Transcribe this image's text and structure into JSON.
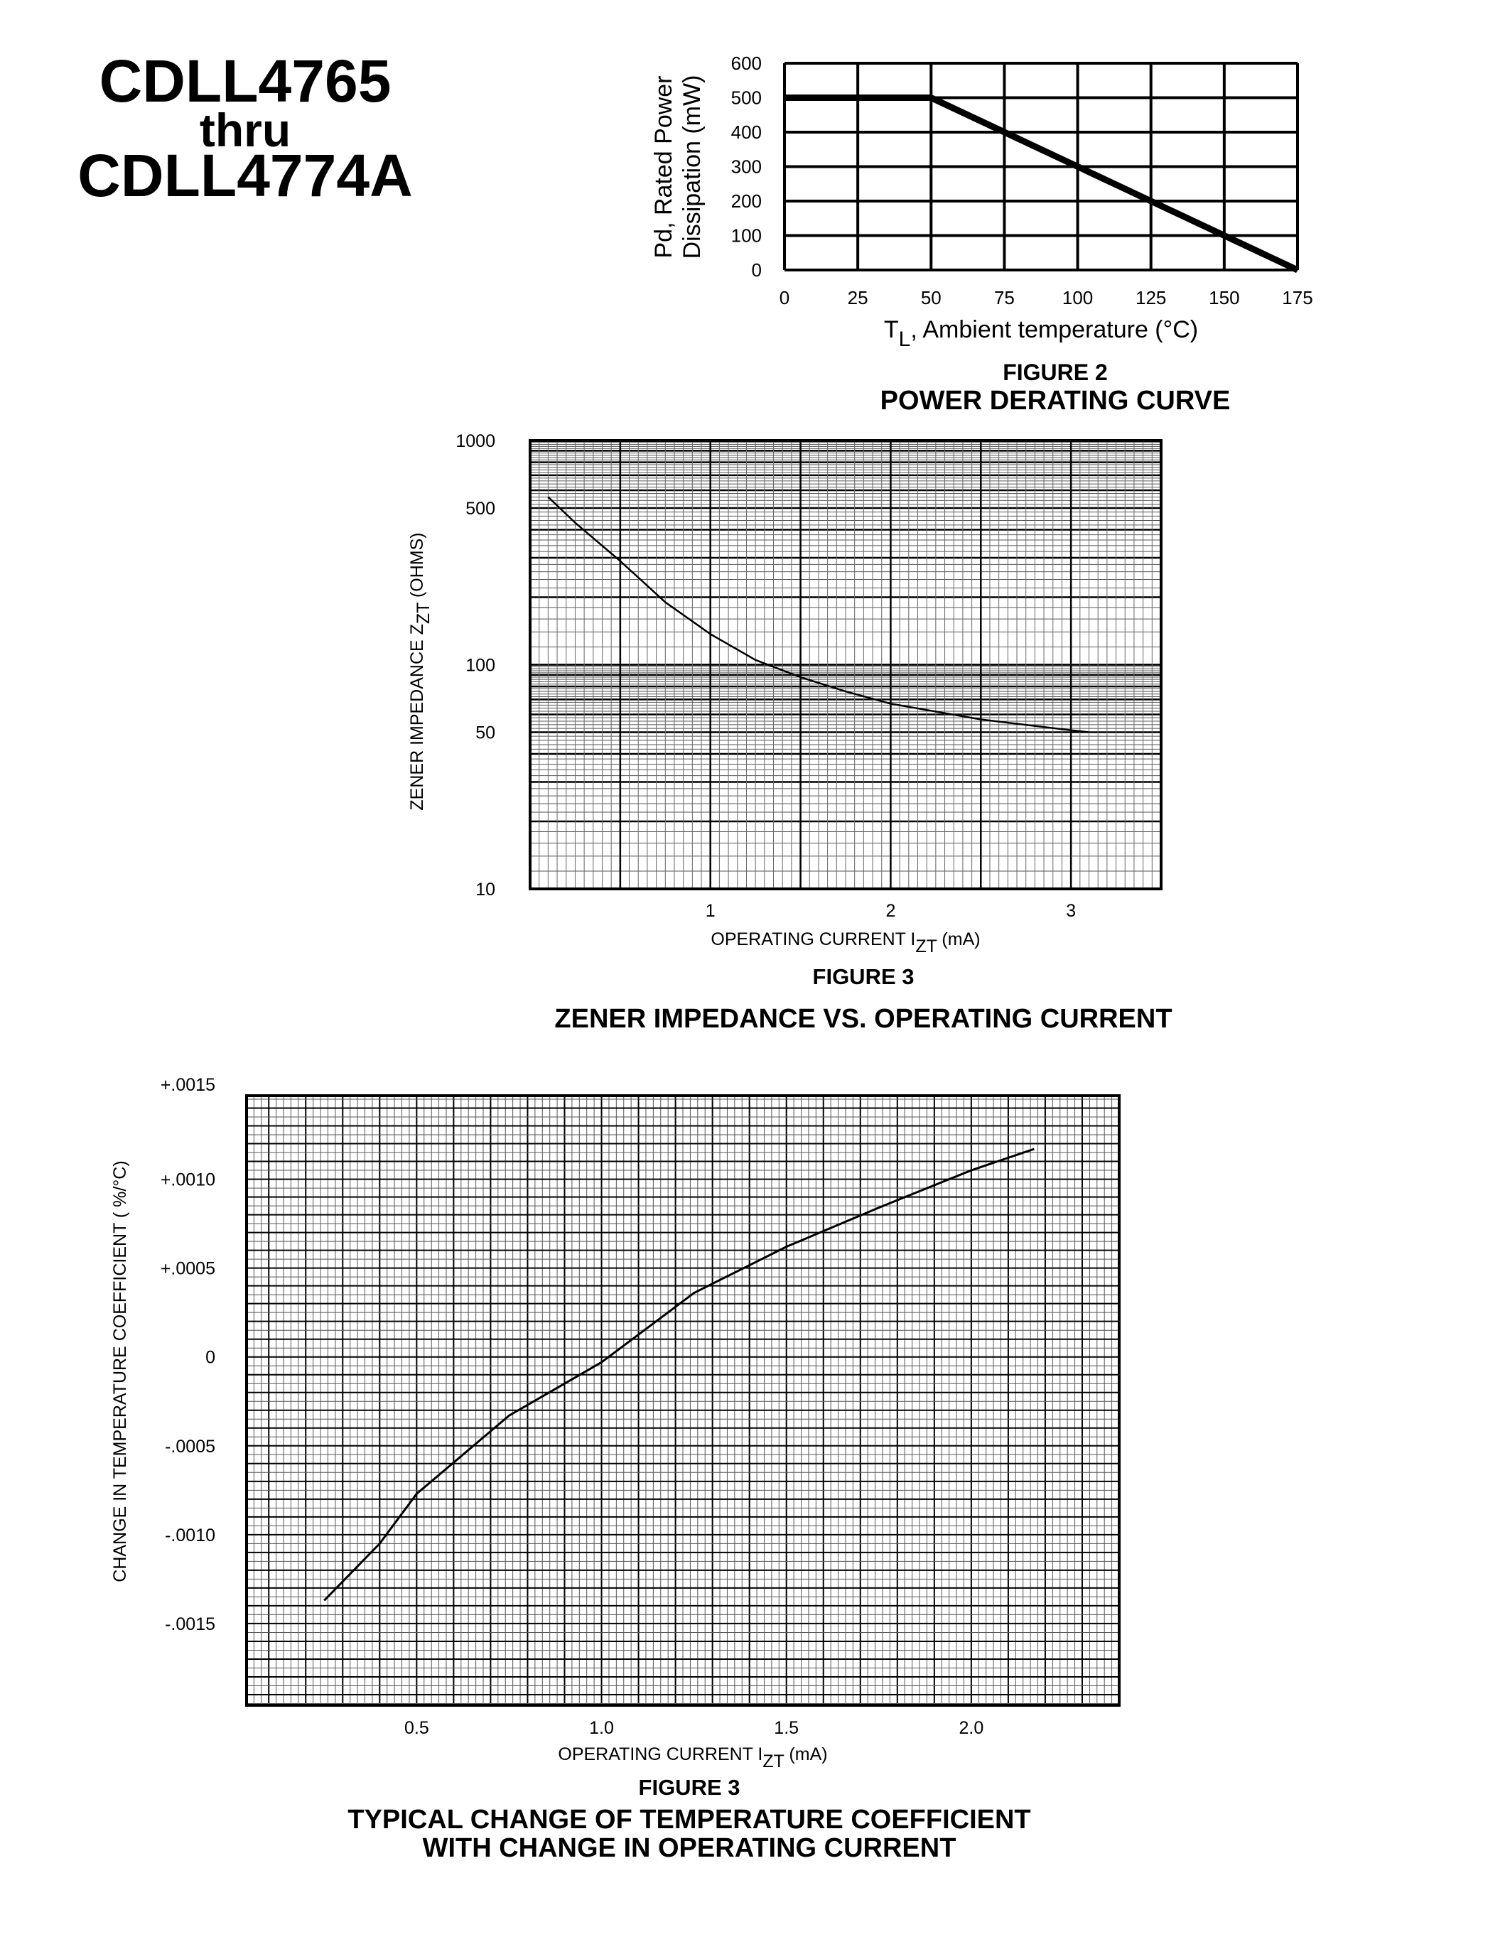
{
  "header": {
    "part_start": "CDLL4765",
    "thru": "thru",
    "part_end": "CDLL4774A"
  },
  "chart_data": [
    {
      "type": "line",
      "figure_label": "FIGURE 2",
      "title": "POWER DERATING CURVE",
      "ylabel_line1": "Pd, Rated Power",
      "ylabel_line2": "Dissipation (mW)",
      "xlabel_main": "T",
      "xlabel_sub": "L",
      "xlabel_rest": ", Ambient temperature (°C)",
      "xlim": [
        0,
        175
      ],
      "ylim": [
        0,
        600
      ],
      "xticks": [
        0,
        25,
        50,
        75,
        100,
        125,
        150,
        175
      ],
      "yticks": [
        0,
        100,
        200,
        300,
        400,
        500,
        600
      ],
      "grid": true,
      "series": [
        {
          "x": [
            0,
            50,
            175
          ],
          "y": [
            500,
            500,
            0
          ]
        }
      ]
    },
    {
      "type": "line",
      "figure_label": "FIGURE 3",
      "title": "ZENER IMPEDANCE VS. OPERATING CURRENT",
      "ylabel_main": "ZENER IMPEDANCE Z",
      "ylabel_sub": "ZT",
      "ylabel_rest": " (OHMS)",
      "xlabel_main": "OPERATING CURRENT I",
      "xlabel_sub": "ZT",
      "xlabel_rest": " (mA)",
      "xlim": [
        0,
        3.5
      ],
      "ylim": [
        10,
        1000
      ],
      "yscale": "log",
      "xticks": [
        "1",
        "2",
        "3"
      ],
      "yticks": [
        "10",
        "50",
        "100",
        "500",
        "1000"
      ],
      "grid": true,
      "series": [
        {
          "x": [
            0.1,
            0.25,
            0.5,
            0.75,
            1.0,
            1.25,
            1.5,
            1.75,
            2.0,
            2.5,
            3.0,
            3.1
          ],
          "y": [
            560,
            430,
            290,
            190,
            137,
            105,
            88,
            76,
            67,
            57,
            51,
            50
          ]
        }
      ]
    },
    {
      "type": "line",
      "figure_label": "FIGURE 3",
      "title_line1": "TYPICAL CHANGE OF TEMPERATURE COEFFICIENT",
      "title_line2": "WITH CHANGE IN OPERATING CURRENT",
      "ylabel": "CHANGE IN TEMPERATURE COEFFICIENT ( %/°C)",
      "xlabel_main": "OPERATING CURRENT I",
      "xlabel_sub": "ZT",
      "xlabel_rest": " (mA)",
      "xlim": [
        0.04,
        2.4
      ],
      "ylim": [
        -0.00196,
        0.00147
      ],
      "xticks": [
        "0.5",
        "1.0",
        "1.5",
        "2.0"
      ],
      "yticks": [
        "+.0015",
        "+.0010",
        "+.0005",
        "0",
        "-.0005",
        "-.0010",
        "-.0015"
      ],
      "grid": true,
      "series": [
        {
          "x": [
            0.25,
            0.4,
            0.5,
            0.75,
            1.0,
            1.25,
            1.5,
            1.75,
            2.0,
            2.17
          ],
          "y": [
            -0.00137,
            -0.00105,
            -0.00077,
            -0.00033,
            -3e-05,
            0.00036,
            0.00062,
            0.00084,
            0.00105,
            0.00117
          ]
        }
      ]
    }
  ]
}
